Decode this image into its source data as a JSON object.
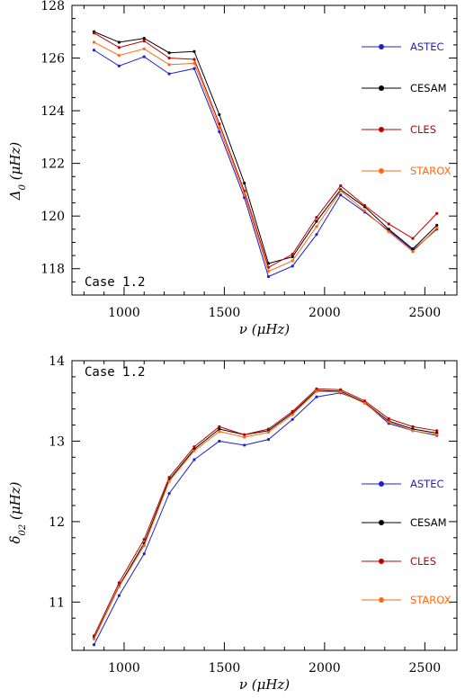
{
  "chart_data": [
    {
      "type": "line",
      "annotation": "Case 1.2",
      "xlabel": "ν  (μHz)",
      "ylabel": "Δ0  (μHz)",
      "xlim": [
        740,
        2660
      ],
      "ylim": [
        117,
        128
      ],
      "xticks": [
        1000,
        1500,
        2000,
        2500
      ],
      "yticks": [
        118,
        120,
        122,
        124,
        126,
        128
      ],
      "legend_position": "right",
      "x": [
        850,
        975,
        1100,
        1225,
        1350,
        1475,
        1600,
        1720,
        1840,
        1960,
        2080,
        2200,
        2320,
        2440,
        2560
      ],
      "series": [
        {
          "name": "ASTEC",
          "color": "#1f1fd0",
          "values": [
            126.3,
            125.7,
            126.05,
            125.4,
            125.6,
            123.2,
            120.7,
            117.7,
            118.1,
            119.3,
            120.8,
            120.15,
            119.45,
            118.7,
            119.5
          ]
        },
        {
          "name": "CESAM",
          "color": "#000000",
          "values": [
            127.0,
            126.6,
            126.75,
            126.2,
            126.25,
            123.85,
            121.25,
            118.2,
            118.45,
            119.8,
            121.0,
            120.35,
            119.5,
            118.75,
            119.65
          ]
        },
        {
          "name": "CLES",
          "color": "#c00000",
          "values": [
            126.95,
            126.4,
            126.65,
            126.0,
            125.95,
            123.5,
            120.95,
            118.05,
            118.55,
            119.95,
            121.15,
            120.4,
            119.7,
            119.15,
            120.1
          ]
        },
        {
          "name": "STAROX",
          "color": "#ff6a10",
          "values": [
            126.6,
            126.1,
            126.35,
            125.75,
            125.8,
            123.35,
            120.85,
            117.9,
            118.3,
            119.6,
            120.95,
            120.2,
            119.4,
            118.65,
            119.55
          ]
        }
      ]
    },
    {
      "type": "line",
      "annotation": "Case 1.2",
      "xlabel": "ν  (μHz)",
      "ylabel": "δ02  (μHz)",
      "xlim": [
        740,
        2660
      ],
      "ylim": [
        10.4,
        14.0
      ],
      "xticks": [
        1000,
        1500,
        2000,
        2500
      ],
      "yticks": [
        11,
        12,
        13,
        14
      ],
      "legend_position": "lower-right",
      "x": [
        850,
        975,
        1100,
        1225,
        1350,
        1475,
        1600,
        1720,
        1840,
        1960,
        2080,
        2200,
        2320,
        2440,
        2560
      ],
      "series": [
        {
          "name": "ASTEC",
          "color": "#1f1fd0",
          "values": [
            10.47,
            11.08,
            11.6,
            12.35,
            12.77,
            13.0,
            12.95,
            13.02,
            13.27,
            13.55,
            13.6,
            13.48,
            13.22,
            13.13,
            13.07
          ]
        },
        {
          "name": "CESAM",
          "color": "#000000",
          "values": [
            10.55,
            11.2,
            11.73,
            12.52,
            12.9,
            13.15,
            13.08,
            13.13,
            13.35,
            13.63,
            13.62,
            13.48,
            13.25,
            13.15,
            13.1
          ]
        },
        {
          "name": "CLES",
          "color": "#c00000",
          "values": [
            10.58,
            11.24,
            11.78,
            12.55,
            12.93,
            13.18,
            13.08,
            13.15,
            13.37,
            13.65,
            13.64,
            13.5,
            13.28,
            13.18,
            13.13
          ]
        },
        {
          "name": "STAROX",
          "color": "#ff6a10",
          "values": [
            10.54,
            11.19,
            11.7,
            12.5,
            12.88,
            13.12,
            13.05,
            13.11,
            13.33,
            13.62,
            13.61,
            13.47,
            13.24,
            13.13,
            13.08
          ]
        }
      ]
    }
  ]
}
